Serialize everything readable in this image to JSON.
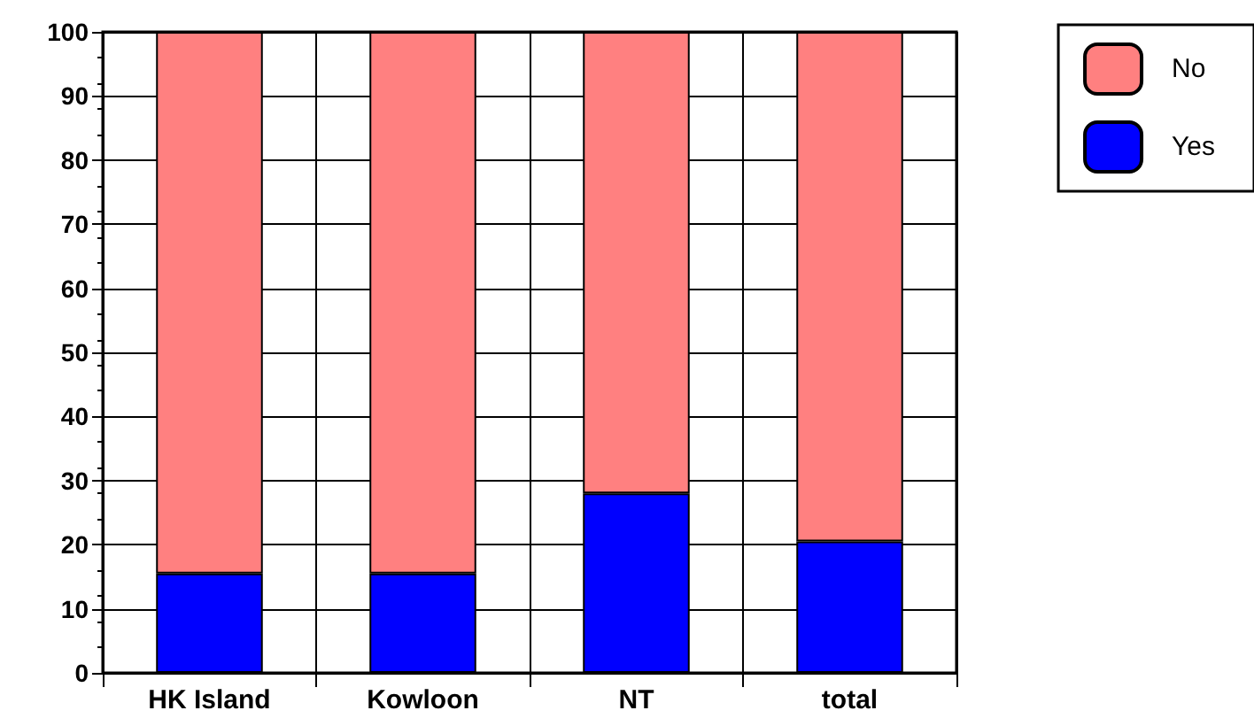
{
  "chart_data": {
    "type": "bar",
    "stacked": true,
    "categories": [
      "HK Island",
      "Kowloon",
      "NT",
      "total"
    ],
    "series": [
      {
        "name": "Yes",
        "color": "#0000ff",
        "values": [
          15.5,
          15.5,
          28,
          20.5
        ]
      },
      {
        "name": "No",
        "color": "#ff8080",
        "values": [
          84.5,
          84.5,
          72,
          79.5
        ]
      }
    ],
    "ylim": [
      0,
      100
    ],
    "yticks": [
      0,
      10,
      20,
      30,
      40,
      50,
      60,
      70,
      80,
      90,
      100
    ],
    "grid": true,
    "legend": "top right"
  }
}
